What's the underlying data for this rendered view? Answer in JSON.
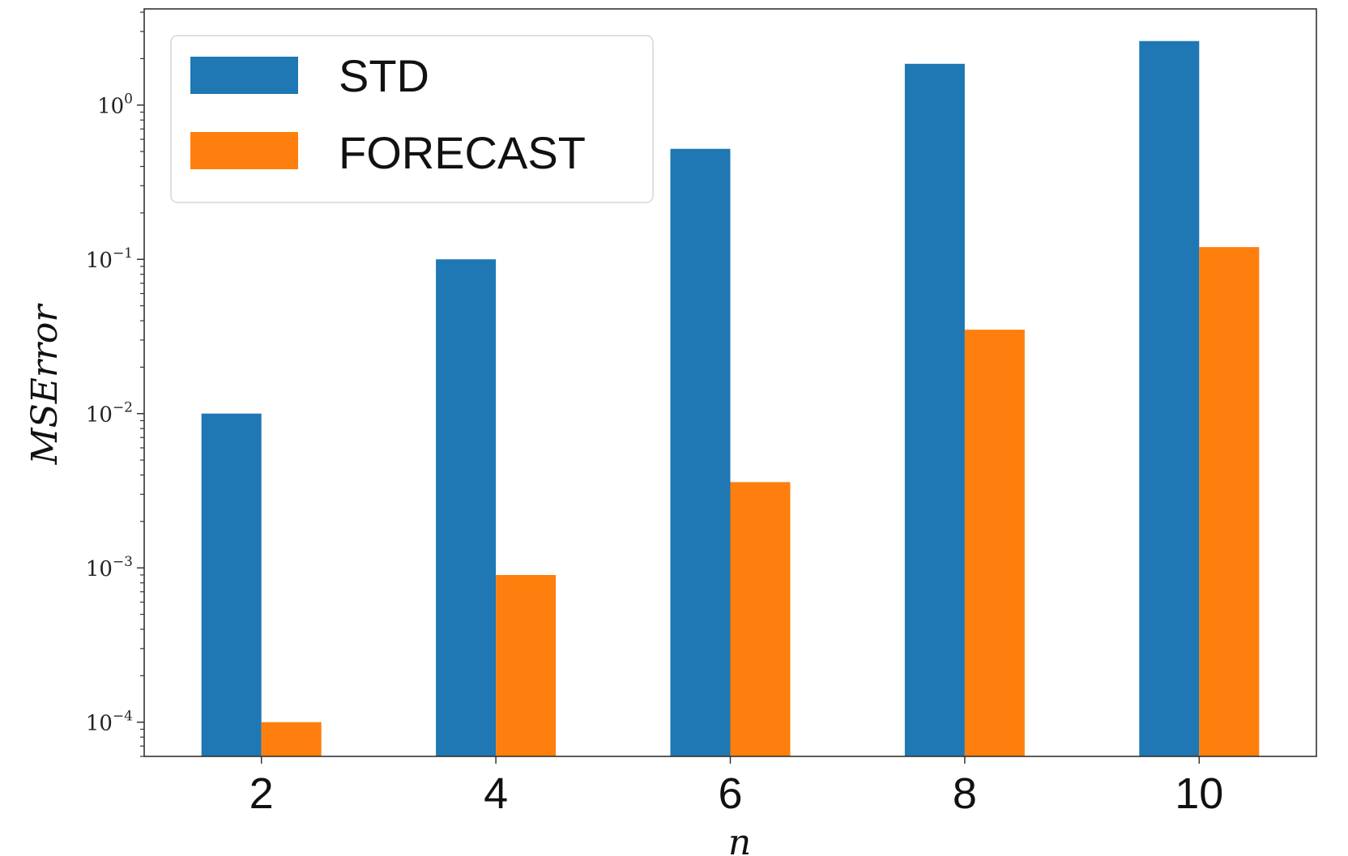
{
  "chart_data": {
    "type": "bar",
    "categories": [
      "2",
      "4",
      "6",
      "8",
      "10"
    ],
    "series": [
      {
        "name": "STD",
        "values": [
          0.01,
          0.1,
          0.52,
          1.85,
          2.6
        ],
        "color": "#1f77b4"
      },
      {
        "name": "FORECAST",
        "values": [
          0.0001,
          0.0009,
          0.0036,
          0.035,
          0.12
        ],
        "color": "#ff7f0e"
      }
    ],
    "title": "",
    "xlabel": "n",
    "ylabel": "MSError",
    "yscale": "log",
    "ylim": [
      6e-05,
      4.2
    ],
    "yticks": [
      {
        "value": 0.0001,
        "base": "10",
        "exp": "−4"
      },
      {
        "value": 0.001,
        "base": "10",
        "exp": "−3"
      },
      {
        "value": 0.01,
        "base": "10",
        "exp": "−2"
      },
      {
        "value": 0.1,
        "base": "10",
        "exp": "−1"
      },
      {
        "value": 1,
        "base": "10",
        "exp": "0"
      }
    ],
    "grid": false,
    "legend_position": "top-left"
  }
}
